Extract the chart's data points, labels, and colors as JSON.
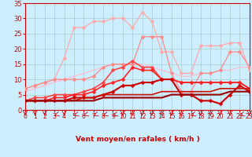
{
  "xlabel": "Vent moyen/en rafales ( km/h )",
  "bg_color": "#cceeff",
  "grid_color": "#aacccc",
  "text_color": "#cc0000",
  "xmin": 0,
  "xmax": 23,
  "ymin": 0,
  "ymax": 35,
  "yticks": [
    0,
    5,
    10,
    15,
    20,
    25,
    30,
    35
  ],
  "xticks": [
    0,
    1,
    2,
    3,
    4,
    5,
    6,
    7,
    8,
    9,
    10,
    11,
    12,
    13,
    14,
    15,
    16,
    17,
    18,
    19,
    20,
    21,
    22,
    23
  ],
  "lines": [
    {
      "x": [
        0,
        1,
        2,
        3,
        4,
        5,
        6,
        7,
        8,
        9,
        10,
        11,
        12,
        13,
        14,
        15,
        16,
        17,
        18,
        19,
        20,
        21,
        22,
        23
      ],
      "y": [
        6,
        7,
        8,
        9,
        10,
        11,
        12,
        13,
        14,
        15,
        15,
        15,
        15,
        14,
        13,
        12,
        11,
        11,
        12,
        12,
        13,
        13,
        14,
        14
      ],
      "color": "#ffbbcc",
      "lw": 0.9,
      "marker": null,
      "ms": 0,
      "zorder": 2
    },
    {
      "x": [
        0,
        1,
        2,
        3,
        4,
        5,
        6,
        7,
        8,
        9,
        10,
        11,
        12,
        13,
        14,
        15,
        16,
        17,
        18,
        19,
        20,
        21,
        22,
        23
      ],
      "y": [
        7,
        8,
        9,
        10,
        17,
        27,
        27,
        29,
        29,
        30,
        30,
        27,
        32,
        29,
        19,
        19,
        12,
        12,
        21,
        21,
        21,
        22,
        22,
        13
      ],
      "color": "#ffaaaa",
      "lw": 0.9,
      "marker": "D",
      "ms": 2.5,
      "zorder": 3
    },
    {
      "x": [
        0,
        1,
        2,
        3,
        4,
        5,
        6,
        7,
        8,
        9,
        10,
        11,
        12,
        13,
        14,
        15,
        16,
        17,
        18,
        19,
        20,
        21,
        22,
        23
      ],
      "y": [
        7,
        8,
        9,
        10,
        10,
        10,
        10,
        11,
        14,
        15,
        15,
        15,
        24,
        24,
        24,
        12,
        6,
        6,
        12,
        12,
        13,
        19,
        19,
        14
      ],
      "color": "#ff8888",
      "lw": 0.9,
      "marker": "D",
      "ms": 2.5,
      "zorder": 3
    },
    {
      "x": [
        0,
        1,
        2,
        3,
        4,
        5,
        6,
        7,
        8,
        9,
        10,
        11,
        12,
        13,
        14,
        15,
        16,
        17,
        18,
        19,
        20,
        21,
        22,
        23
      ],
      "y": [
        3,
        4,
        4,
        5,
        5,
        5,
        6,
        7,
        9,
        13,
        14,
        16,
        14,
        14,
        10,
        10,
        9,
        9,
        9,
        9,
        9,
        9,
        9,
        7
      ],
      "color": "#ff4444",
      "lw": 1.2,
      "marker": "D",
      "ms": 2.5,
      "zorder": 4
    },
    {
      "x": [
        0,
        1,
        2,
        3,
        4,
        5,
        6,
        7,
        8,
        9,
        10,
        11,
        12,
        13,
        14,
        15,
        16,
        17,
        18,
        19,
        20,
        21,
        22,
        23
      ],
      "y": [
        3,
        3,
        3,
        4,
        4,
        5,
        5,
        6,
        8,
        9,
        10,
        14,
        13,
        13,
        10,
        10,
        9,
        9,
        9,
        9,
        9,
        9,
        9,
        7
      ],
      "color": "#ff2222",
      "lw": 1.2,
      "marker": "D",
      "ms": 2.5,
      "zorder": 5
    },
    {
      "x": [
        0,
        1,
        2,
        3,
        4,
        5,
        6,
        7,
        8,
        9,
        10,
        11,
        12,
        13,
        14,
        15,
        16,
        17,
        18,
        19,
        20,
        21,
        22,
        23
      ],
      "y": [
        3,
        3,
        3,
        3,
        3,
        4,
        4,
        4,
        5,
        6,
        8,
        8,
        9,
        9,
        10,
        10,
        5,
        5,
        3,
        3,
        2,
        5,
        8,
        6
      ],
      "color": "#cc0000",
      "lw": 1.5,
      "marker": "D",
      "ms": 2.5,
      "zorder": 6
    },
    {
      "x": [
        0,
        1,
        2,
        3,
        4,
        5,
        6,
        7,
        8,
        9,
        10,
        11,
        12,
        13,
        14,
        15,
        16,
        17,
        18,
        19,
        20,
        21,
        22,
        23
      ],
      "y": [
        3,
        3,
        3,
        3,
        3,
        3,
        3,
        3,
        4,
        4,
        4,
        4,
        4,
        4,
        4,
        5,
        5,
        5,
        5,
        5,
        5,
        6,
        6,
        6
      ],
      "color": "#990000",
      "lw": 1.5,
      "marker": null,
      "ms": 0,
      "zorder": 7
    },
    {
      "x": [
        0,
        1,
        2,
        3,
        4,
        5,
        6,
        7,
        8,
        9,
        10,
        11,
        12,
        13,
        14,
        15,
        16,
        17,
        18,
        19,
        20,
        21,
        22,
        23
      ],
      "y": [
        3,
        3,
        3,
        3,
        3,
        3,
        4,
        4,
        5,
        5,
        5,
        5,
        5,
        5,
        6,
        6,
        6,
        6,
        6,
        6,
        7,
        7,
        7,
        7
      ],
      "color": "#cc1100",
      "lw": 1.2,
      "marker": null,
      "ms": 0,
      "zorder": 6
    }
  ],
  "arrow_directions": [
    270,
    270,
    270,
    225,
    270,
    225,
    225,
    225,
    225,
    225,
    270,
    270,
    270,
    270,
    270,
    270,
    270,
    225,
    270,
    270,
    270,
    270,
    225,
    270
  ]
}
